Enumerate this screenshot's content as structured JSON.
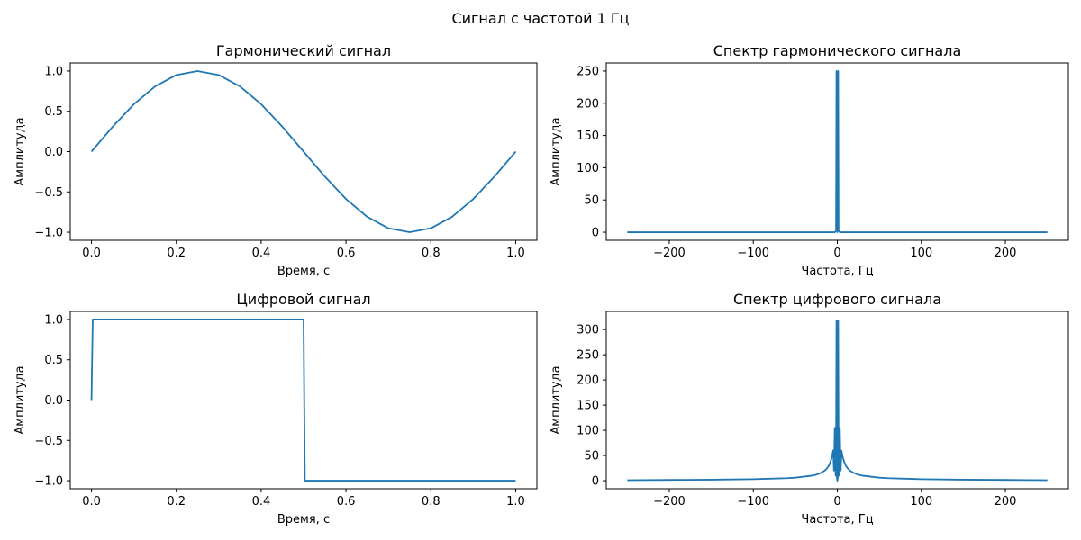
{
  "figure": {
    "suptitle": "Сигнал с частотой 1 Гц",
    "line_color": "#1f77b4"
  },
  "chart_data": [
    {
      "type": "line",
      "title": "Гармонический сигнал",
      "xlabel": "Время, с",
      "ylabel": "Амплитуда",
      "xlim": [
        -0.05,
        1.05
      ],
      "ylim": [
        -1.1,
        1.1
      ],
      "xticks": [
        0.0,
        0.2,
        0.4,
        0.6,
        0.8,
        1.0
      ],
      "xtick_labels": [
        "0.0",
        "0.2",
        "0.4",
        "0.6",
        "0.8",
        "1.0"
      ],
      "yticks": [
        1.0,
        0.5,
        0.0,
        -0.5,
        -1.0
      ],
      "ytick_labels": [
        "1.0",
        "0.5",
        "0.0",
        "−0.5",
        "−1.0"
      ],
      "series": [
        {
          "x": [
            0.0,
            0.05,
            0.1,
            0.15,
            0.2,
            0.25,
            0.3,
            0.35,
            0.4,
            0.45,
            0.5,
            0.55,
            0.6,
            0.65,
            0.7,
            0.75,
            0.8,
            0.85,
            0.9,
            0.95,
            1.0
          ],
          "y": [
            0.0,
            0.309,
            0.588,
            0.809,
            0.951,
            1.0,
            0.951,
            0.809,
            0.588,
            0.309,
            0.0,
            -0.309,
            -0.588,
            -0.809,
            -0.951,
            -1.0,
            -0.951,
            -0.809,
            -0.588,
            -0.309,
            0.0
          ]
        }
      ]
    },
    {
      "type": "line",
      "title": "Спектр гармонического сигнала",
      "xlabel": "Частота, Гц",
      "ylabel": "Амплитуда",
      "xlim": [
        -275,
        275
      ],
      "ylim": [
        -12.5,
        262.5
      ],
      "xticks": [
        -200,
        -100,
        0,
        100,
        200
      ],
      "xtick_labels": [
        "−200",
        "−100",
        "0",
        "100",
        "200"
      ],
      "yticks": [
        250,
        200,
        150,
        100,
        50,
        0
      ],
      "ytick_labels": [
        "250",
        "200",
        "150",
        "100",
        "50",
        "0"
      ],
      "series": [
        {
          "x": [
            -250,
            -3,
            -1.5,
            -1,
            0,
            1,
            1.5,
            3,
            250
          ],
          "y": [
            0,
            0,
            2,
            250,
            0,
            250,
            2,
            0,
            0
          ]
        }
      ]
    },
    {
      "type": "line",
      "title": "Цифровой сигнал",
      "xlabel": "Время, с",
      "ylabel": "Амплитуда",
      "xlim": [
        -0.05,
        1.05
      ],
      "ylim": [
        -1.1,
        1.1
      ],
      "xticks": [
        0.0,
        0.2,
        0.4,
        0.6,
        0.8,
        1.0
      ],
      "xtick_labels": [
        "0.0",
        "0.2",
        "0.4",
        "0.6",
        "0.8",
        "1.0"
      ],
      "yticks": [
        1.0,
        0.5,
        0.0,
        -0.5,
        -1.0
      ],
      "ytick_labels": [
        "1.0",
        "0.5",
        "0.0",
        "−0.5",
        "−1.0"
      ],
      "series": [
        {
          "x": [
            0.0,
            0.003,
            0.5,
            0.503,
            1.0
          ],
          "y": [
            0.0,
            1.0,
            1.0,
            -1.0,
            -1.0
          ]
        }
      ]
    },
    {
      "type": "line",
      "title": "Спектр цифрового сигнала",
      "xlabel": "Частота, Гц",
      "ylabel": "Амплитуда",
      "xlim": [
        -275,
        275
      ],
      "ylim": [
        -16,
        336
      ],
      "xticks": [
        -200,
        -100,
        0,
        100,
        200
      ],
      "xtick_labels": [
        "−200",
        "−100",
        "0",
        "100",
        "200"
      ],
      "yticks": [
        300,
        250,
        200,
        150,
        100,
        50,
        0
      ],
      "ytick_labels": [
        "300",
        "250",
        "200",
        "150",
        "100",
        "50",
        "0"
      ],
      "series": [
        {
          "x": [
            -250,
            -200,
            -150,
            -100,
            -80,
            -60,
            -50,
            -40,
            -30,
            -25,
            -20,
            -15,
            -12,
            -10,
            -8,
            -6,
            -5,
            -4,
            -3,
            -2,
            -1.5,
            -1,
            -0.5,
            0,
            0.5,
            1,
            1.5,
            2,
            3,
            4,
            5,
            6,
            8,
            10,
            12,
            15,
            20,
            25,
            30,
            40,
            50,
            60,
            80,
            100,
            150,
            200,
            250
          ],
          "y": [
            1,
            1.5,
            2,
            3,
            4,
            5,
            6,
            8,
            10,
            12,
            15,
            20,
            25,
            30,
            38,
            50,
            60,
            20,
            105,
            10,
            60,
            318,
            5,
            0,
            5,
            318,
            60,
            10,
            105,
            20,
            60,
            50,
            38,
            30,
            25,
            20,
            15,
            12,
            10,
            8,
            6,
            5,
            4,
            3,
            2,
            1.5,
            1
          ]
        }
      ]
    }
  ]
}
